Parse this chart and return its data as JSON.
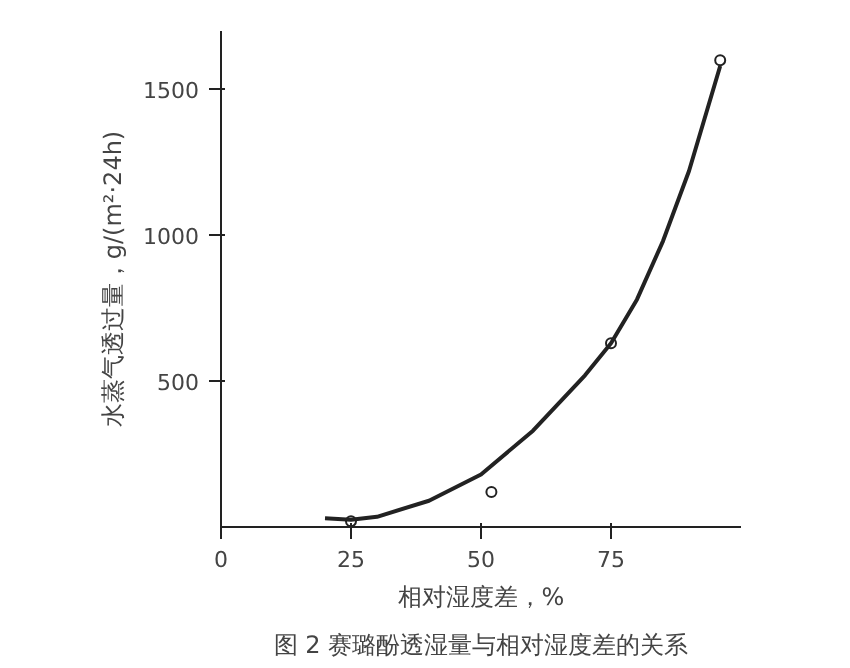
{
  "chart_data": {
    "type": "scatter",
    "xlabel": "相对湿度差，%",
    "ylabel": "水蒸气透过量，g/(m²·24h)",
    "annotations": [
      "图 2 赛璐酚透湿量与相对湿度差的关系"
    ],
    "xlim": [
      0,
      100
    ],
    "ylim": [
      0,
      1700
    ],
    "xticks": [
      0,
      25,
      50,
      75
    ],
    "yticks": [
      500,
      1000,
      1500
    ],
    "grid": false,
    "series": [
      {
        "marker": "circle",
        "color": "#222222",
        "x": [
          25,
          52,
          75,
          96
        ],
        "values": [
          20,
          120,
          630,
          1600
        ]
      },
      {
        "type": "line",
        "line_style": "solid",
        "marker": "none",
        "color": "#222222",
        "x": [
          20,
          25,
          30,
          40,
          50,
          60,
          70,
          75,
          80,
          85,
          90,
          95,
          96
        ],
        "values": [
          30,
          25,
          35,
          90,
          180,
          330,
          520,
          630,
          780,
          980,
          1220,
          1520,
          1580
        ]
      }
    ]
  }
}
